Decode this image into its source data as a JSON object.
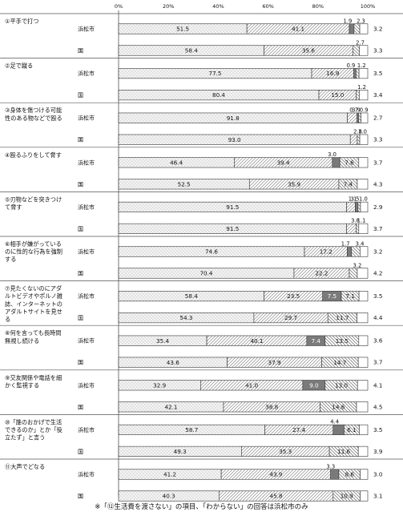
{
  "chart_data": {
    "type": "bar",
    "subtype": "stacked-horizontal-100",
    "axis_ticks": [
      "0%",
      "20%",
      "40%",
      "60%",
      "80%",
      "100%"
    ],
    "xlim": [
      0,
      100
    ],
    "grid": false,
    "legend": "none",
    "region_labels": [
      "浜松市",
      "国"
    ],
    "categories": [
      {
        "label": "①平手で打つ",
        "rows": [
          {
            "region": "浜松市",
            "values": [
              51.5,
              41.1,
              1.9,
              2.3
            ],
            "remainder": "3.2"
          },
          {
            "region": "国",
            "values": [
              58.4,
              35.6,
              0,
              2.7
            ],
            "remainder": "3.3"
          }
        ]
      },
      {
        "label": "②足で蹴る",
        "rows": [
          {
            "region": "浜松市",
            "values": [
              77.5,
              16.9,
              0.9,
              1.2
            ],
            "remainder": "3.5"
          },
          {
            "region": "国",
            "values": [
              80.4,
              15.0,
              0,
              1.2
            ],
            "remainder": "3.4"
          }
        ]
      },
      {
        "label": "③身体を傷つける可能性のある物などで殴る",
        "rows": [
          {
            "region": "浜松市",
            "values": [
              91.8,
              3.9,
              0.7,
              0.9
            ],
            "remainder": "2.7"
          },
          {
            "region": "国",
            "values": [
              93.0,
              2.8,
              0,
              1.0
            ],
            "remainder": "3.3"
          }
        ]
      },
      {
        "label": "④殴るふりをして脅す",
        "rows": [
          {
            "region": "浜松市",
            "values": [
              46.4,
              39.4,
              3.0,
              7.6
            ],
            "remainder": "3.7"
          },
          {
            "region": "国",
            "values": [
              52.5,
              35.9,
              0,
              7.4
            ],
            "remainder": "4.3"
          }
        ]
      },
      {
        "label": "⑤刃物などを突きつけて脅す",
        "rows": [
          {
            "region": "浜松市",
            "values": [
              91.5,
              3.5,
              1.1,
              1.0
            ],
            "remainder": "2.9"
          },
          {
            "region": "国",
            "values": [
              91.5,
              3.8,
              0,
              1.1
            ],
            "remainder": "3.7"
          }
        ]
      },
      {
        "label": "⑥相手が嫌がっているのに性的な行為を強制する",
        "rows": [
          {
            "region": "浜松市",
            "values": [
              74.6,
              17.2,
              1.7,
              3.4
            ],
            "remainder": "3.2"
          },
          {
            "region": "国",
            "values": [
              70.4,
              22.2,
              0,
              3.2
            ],
            "remainder": "4.2"
          }
        ]
      },
      {
        "label": "⑦見たくないのにアダルトビデオやポルノ雑誌、インターネットのアダルトサイトを見せる",
        "rows": [
          {
            "region": "浜松市",
            "values": [
              58.4,
              23.5,
              7.5,
              7.1
            ],
            "remainder": "3.5"
          },
          {
            "region": "国",
            "values": [
              54.3,
              29.7,
              0,
              11.7
            ],
            "remainder": "4.4"
          }
        ]
      },
      {
        "label": "⑧何を言っても長時間無視し続ける",
        "rows": [
          {
            "region": "浜松市",
            "values": [
              35.4,
              40.1,
              7.4,
              13.5
            ],
            "remainder": "3.6"
          },
          {
            "region": "国",
            "values": [
              43.6,
              37.9,
              0,
              14.7
            ],
            "remainder": "3.7"
          }
        ]
      },
      {
        "label": "⑨交友関係や電話を細かく監視する",
        "rows": [
          {
            "region": "浜松市",
            "values": [
              32.9,
              41.0,
              9.0,
              13.0
            ],
            "remainder": "4.1"
          },
          {
            "region": "国",
            "values": [
              42.1,
              38.8,
              0,
              14.6
            ],
            "remainder": "4.5"
          }
        ]
      },
      {
        "label": "⑩「誰のおかげで生活できるのか」とか「役立たず」と言う",
        "rows": [
          {
            "region": "浜松市",
            "values": [
              58.7,
              27.4,
              4.4,
              6.1
            ],
            "remainder": "3.5"
          },
          {
            "region": "国",
            "values": [
              49.3,
              35.3,
              0,
              11.6
            ],
            "remainder": "3.9"
          }
        ]
      },
      {
        "label": "⑪大声でどなる",
        "rows": [
          {
            "region": "浜松市",
            "values": [
              41.2,
              43.9,
              3.3,
              8.6
            ],
            "remainder": "3.0"
          },
          {
            "region": "国",
            "values": [
              40.3,
              45.8,
              0,
              10.9
            ],
            "remainder": "3.1"
          }
        ]
      }
    ]
  },
  "footnote": "※「⑫生活費を渡さない」の項目、「わからない」の回答は浜松市のみ",
  "colors": {
    "seg1_fill": "#f2f2f2",
    "seg2_fill": "#ffffff",
    "seg3_fill": "#7a7a7a",
    "seg4_fill": "#ffffff",
    "stroke": "#333333"
  }
}
